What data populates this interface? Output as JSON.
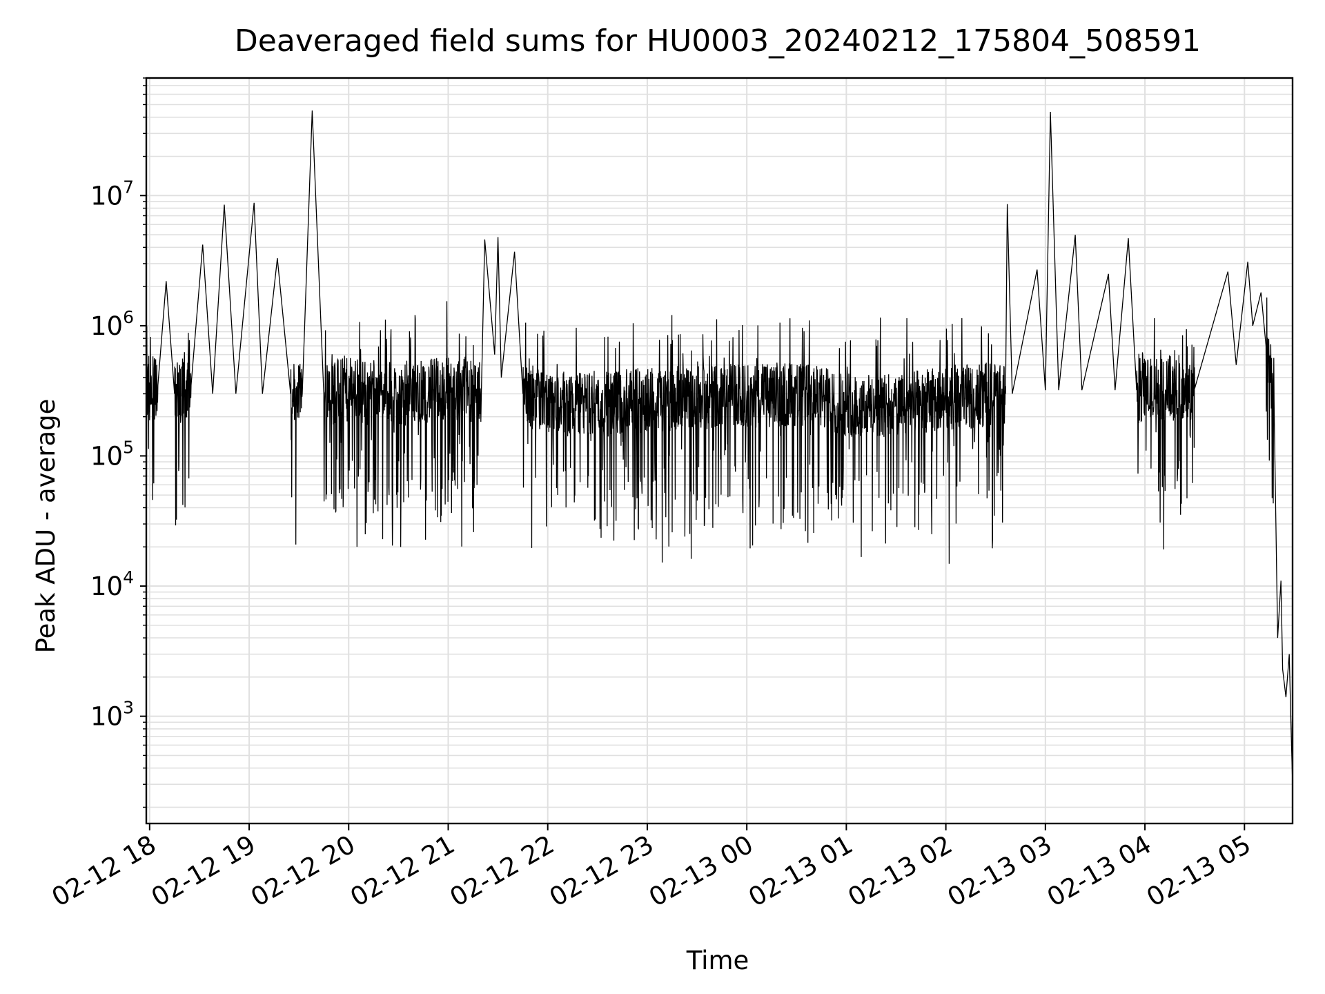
{
  "chart_data": {
    "type": "line",
    "title": "Deaveraged field sums for HU0003_20240212_175804_508591",
    "xlabel": "Time",
    "ylabel": "Peak ADU - average",
    "yscale": "log",
    "grid": true,
    "xlim": [
      "2024-02-12 17:58",
      "2024-02-13 05:29"
    ],
    "ylim": [
      150,
      80000000
    ],
    "x_ticks": [
      "02-12 18",
      "02-12 19",
      "02-12 20",
      "02-12 21",
      "02-12 22",
      "02-12 23",
      "02-13 00",
      "02-13 01",
      "02-13 02",
      "02-13 03",
      "02-13 04",
      "02-13 05"
    ],
    "y_ticks": [
      {
        "value": 1000,
        "base": "10",
        "exp": "3"
      },
      {
        "value": 10000,
        "base": "10",
        "exp": "4"
      },
      {
        "value": 100000,
        "base": "10",
        "exp": "5"
      },
      {
        "value": 1000000,
        "base": "10",
        "exp": "6"
      },
      {
        "value": 10000000,
        "base": "10",
        "exp": "7"
      }
    ],
    "line_color": "#000000",
    "grid_color": "#e0e0e0",
    "series": [
      {
        "points": [
          [
            "2024-02-12 17:58",
            300000
          ],
          [
            "2024-02-12 18:05",
            350000
          ],
          [
            "2024-02-12 18:10",
            2200000
          ],
          [
            "2024-02-12 18:15",
            300000
          ],
          [
            "2024-02-12 18:25",
            350000
          ],
          [
            "2024-02-12 18:32",
            4200000
          ],
          [
            "2024-02-12 18:38",
            300000
          ],
          [
            "2024-02-12 18:45",
            8500000
          ],
          [
            "2024-02-12 18:52",
            300000
          ],
          [
            "2024-02-12 19:03",
            8800000
          ],
          [
            "2024-02-12 19:08",
            300000
          ],
          [
            "2024-02-12 19:17",
            3300000
          ],
          [
            "2024-02-12 19:25",
            300000
          ],
          [
            "2024-02-12 19:32",
            300000
          ],
          [
            "2024-02-12 19:38",
            45000000
          ],
          [
            "2024-02-12 19:45",
            300000
          ],
          [
            "2024-02-12 20:00",
            320000
          ],
          [
            "2024-02-12 20:30",
            300000
          ],
          [
            "2024-02-12 21:00",
            330000
          ],
          [
            "2024-02-12 21:20",
            320000
          ],
          [
            "2024-02-12 21:22",
            4600000
          ],
          [
            "2024-02-12 21:28",
            600000
          ],
          [
            "2024-02-12 21:30",
            4800000
          ],
          [
            "2024-02-12 21:32",
            400000
          ],
          [
            "2024-02-12 21:40",
            3700000
          ],
          [
            "2024-02-12 21:45",
            300000
          ],
          [
            "2024-02-12 22:00",
            250000
          ],
          [
            "2024-02-12 22:30",
            250000
          ],
          [
            "2024-02-12 23:00",
            270000
          ],
          [
            "2024-02-12 23:30",
            280000
          ],
          [
            "2024-02-13 00:00",
            290000
          ],
          [
            "2024-02-13 00:30",
            300000
          ],
          [
            "2024-02-13 01:00",
            250000
          ],
          [
            "2024-02-13 01:30",
            240000
          ],
          [
            "2024-02-13 02:00",
            280000
          ],
          [
            "2024-02-13 02:36",
            300000
          ],
          [
            "2024-02-13 02:37",
            8600000
          ],
          [
            "2024-02-13 02:40",
            300000
          ],
          [
            "2024-02-13 02:55",
            2700000
          ],
          [
            "2024-02-13 03:00",
            320000
          ],
          [
            "2024-02-13 03:03",
            44000000
          ],
          [
            "2024-02-13 03:08",
            320000
          ],
          [
            "2024-02-13 03:18",
            5000000
          ],
          [
            "2024-02-13 03:22",
            320000
          ],
          [
            "2024-02-13 03:38",
            2500000
          ],
          [
            "2024-02-13 03:42",
            320000
          ],
          [
            "2024-02-13 03:50",
            4700000
          ],
          [
            "2024-02-13 03:55",
            320000
          ],
          [
            "2024-02-13 04:30",
            330000
          ],
          [
            "2024-02-13 04:50",
            2600000
          ],
          [
            "2024-02-13 04:55",
            500000
          ],
          [
            "2024-02-13 05:02",
            3100000
          ],
          [
            "2024-02-13 05:05",
            1000000
          ],
          [
            "2024-02-13 05:10",
            1800000
          ],
          [
            "2024-02-13 05:13",
            700000
          ],
          [
            "2024-02-13 05:16",
            400000
          ],
          [
            "2024-02-13 05:18",
            180000
          ],
          [
            "2024-02-13 05:20",
            4000
          ],
          [
            "2024-02-13 05:22",
            11000
          ],
          [
            "2024-02-13 05:23",
            2300
          ],
          [
            "2024-02-13 05:25",
            1400
          ],
          [
            "2024-02-13 05:27",
            3000
          ],
          [
            "2024-02-13 05:28",
            900
          ],
          [
            "2024-02-13 05:29",
            300
          ]
        ]
      }
    ]
  }
}
